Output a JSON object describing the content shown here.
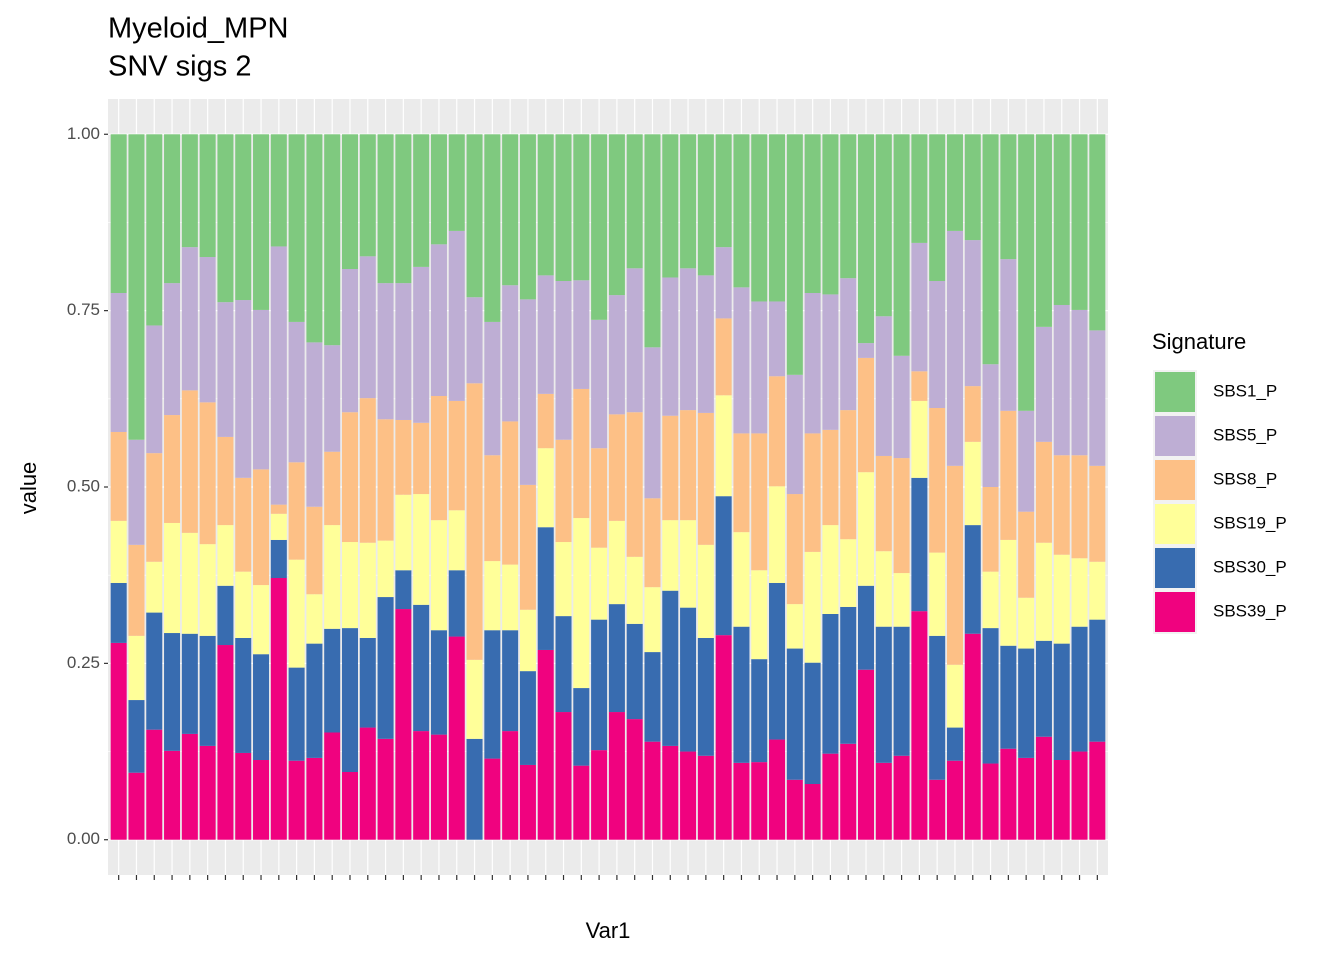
{
  "chart_data": {
    "type": "stacked_bar",
    "title": "Myeloid_MPN",
    "subtitle": "SNV sigs 2",
    "x_label": "Var1",
    "y_label": "value",
    "legend_title": "Signature",
    "legend": "right",
    "grid": true,
    "categories": [
      null,
      null,
      null,
      null,
      null,
      null,
      null,
      null,
      null,
      null,
      null,
      null,
      null,
      null,
      null,
      null,
      null,
      null,
      null,
      null,
      null,
      null,
      null,
      null,
      null,
      null,
      null,
      null,
      null,
      null,
      null,
      null,
      null,
      null,
      null,
      null,
      null,
      null,
      null,
      null,
      null,
      null,
      null,
      null,
      null,
      null,
      null,
      null,
      null,
      null,
      null,
      null,
      null,
      null,
      null,
      null
    ],
    "ylim": [
      -0.05,
      1.05
    ],
    "yticks": [
      {
        "value": 0,
        "label": "0.00"
      },
      {
        "value": 0.25,
        "label": "0.25"
      },
      {
        "value": 0.5,
        "label": "0.50"
      },
      {
        "value": 0.75,
        "label": "0.75"
      },
      {
        "value": 1,
        "label": "1.00"
      }
    ],
    "series": [
      {
        "name": "SBS1_P",
        "color": "#7fc97f",
        "values": [
          0.225,
          0.433,
          0.271,
          0.211,
          0.16,
          0.174,
          0.238,
          0.235,
          0.249,
          0.159,
          0.266,
          0.295,
          0.299,
          0.191,
          0.173,
          0.211,
          0.211,
          0.188,
          0.156,
          0.137,
          0.231,
          0.266,
          0.214,
          0.234,
          0.2,
          0.208,
          0.207,
          0.263,
          0.228,
          0.19,
          0.302,
          0.203,
          0.19,
          0.2,
          0.16,
          0.217,
          0.237,
          0.237,
          0.341,
          0.225,
          0.227,
          0.204,
          0.296,
          0.258,
          0.314,
          0.154,
          0.208,
          0.137,
          0.15,
          0.326,
          0.177,
          0.392,
          0.273,
          0.242,
          0.249,
          0.278
        ]
      },
      {
        "name": "SBS5_P",
        "color": "#beaed4",
        "values": [
          0.197,
          0.149,
          0.181,
          0.187,
          0.203,
          0.206,
          0.191,
          0.252,
          0.226,
          0.366,
          0.199,
          0.233,
          0.151,
          0.203,
          0.201,
          0.193,
          0.194,
          0.221,
          0.215,
          0.241,
          0.122,
          0.189,
          0.193,
          0.263,
          0.168,
          0.225,
          0.154,
          0.182,
          0.169,
          0.204,
          0.214,
          0.196,
          0.201,
          0.195,
          0.101,
          0.207,
          0.187,
          0.106,
          0.169,
          0.199,
          0.192,
          0.187,
          0.021,
          0.198,
          0.145,
          0.182,
          0.18,
          0.333,
          0.207,
          0.174,
          0.215,
          0.143,
          0.163,
          0.213,
          0.206,
          0.192
        ]
      },
      {
        "name": "SBS8_P",
        "color": "#fdc086",
        "values": [
          0.126,
          0.129,
          0.154,
          0.153,
          0.202,
          0.201,
          0.125,
          0.133,
          0.164,
          0.013,
          0.138,
          0.124,
          0.104,
          0.184,
          0.205,
          0.172,
          0.106,
          0.101,
          0.176,
          0.155,
          0.392,
          0.15,
          0.203,
          0.177,
          0.077,
          0.145,
          0.183,
          0.141,
          0.151,
          0.205,
          0.126,
          0.148,
          0.156,
          0.187,
          0.109,
          0.14,
          0.194,
          0.156,
          0.156,
          0.168,
          0.135,
          0.183,
          0.162,
          0.135,
          0.163,
          0.042,
          0.205,
          0.282,
          0.079,
          0.12,
          0.183,
          0.122,
          0.143,
          0.141,
          0.146,
          0.136
        ]
      },
      {
        "name": "SBS19_P",
        "color": "#ffff99",
        "values": [
          0.088,
          0.091,
          0.072,
          0.156,
          0.143,
          0.13,
          0.086,
          0.094,
          0.098,
          0.037,
          0.153,
          0.07,
          0.147,
          0.122,
          0.135,
          0.08,
          0.107,
          0.157,
          0.156,
          0.085,
          0.112,
          0.098,
          0.093,
          0.087,
          0.112,
          0.105,
          0.241,
          0.102,
          0.118,
          0.095,
          0.092,
          0.1,
          0.124,
          0.132,
          0.143,
          0.134,
          0.126,
          0.137,
          0.063,
          0.157,
          0.126,
          0.096,
          0.161,
          0.107,
          0.076,
          0.109,
          0.118,
          0.089,
          0.118,
          0.08,
          0.15,
          0.072,
          0.139,
          0.126,
          0.097,
          0.082
        ]
      },
      {
        "name": "SBS30_P",
        "color": "#386cb0",
        "values": [
          0.085,
          0.103,
          0.166,
          0.167,
          0.142,
          0.156,
          0.084,
          0.163,
          0.15,
          0.054,
          0.132,
          0.162,
          0.147,
          0.204,
          0.127,
          0.201,
          0.055,
          0.179,
          0.148,
          0.094,
          0.143,
          0.182,
          0.143,
          0.133,
          0.174,
          0.136,
          0.11,
          0.185,
          0.153,
          0.135,
          0.127,
          0.22,
          0.204,
          0.167,
          0.197,
          0.193,
          0.146,
          0.222,
          0.186,
          0.172,
          0.198,
          0.194,
          0.119,
          0.193,
          0.183,
          0.189,
          0.204,
          0.047,
          0.154,
          0.192,
          0.146,
          0.155,
          0.136,
          0.165,
          0.177,
          0.173
        ]
      },
      {
        "name": "SBS39_P",
        "color": "#f0027f",
        "values": [
          0.279,
          0.095,
          0.156,
          0.126,
          0.15,
          0.133,
          0.276,
          0.123,
          0.113,
          0.371,
          0.112,
          0.116,
          0.152,
          0.096,
          0.159,
          0.143,
          0.327,
          0.154,
          0.149,
          0.288,
          0,
          0.115,
          0.154,
          0.106,
          0.269,
          0.181,
          0.105,
          0.127,
          0.181,
          0.171,
          0.139,
          0.133,
          0.125,
          0.119,
          0.29,
          0.109,
          0.11,
          0.142,
          0.085,
          0.079,
          0.122,
          0.136,
          0.241,
          0.109,
          0.119,
          0.324,
          0.085,
          0.112,
          0.292,
          0.108,
          0.129,
          0.116,
          0.146,
          0.113,
          0.125,
          0.139
        ]
      }
    ]
  }
}
